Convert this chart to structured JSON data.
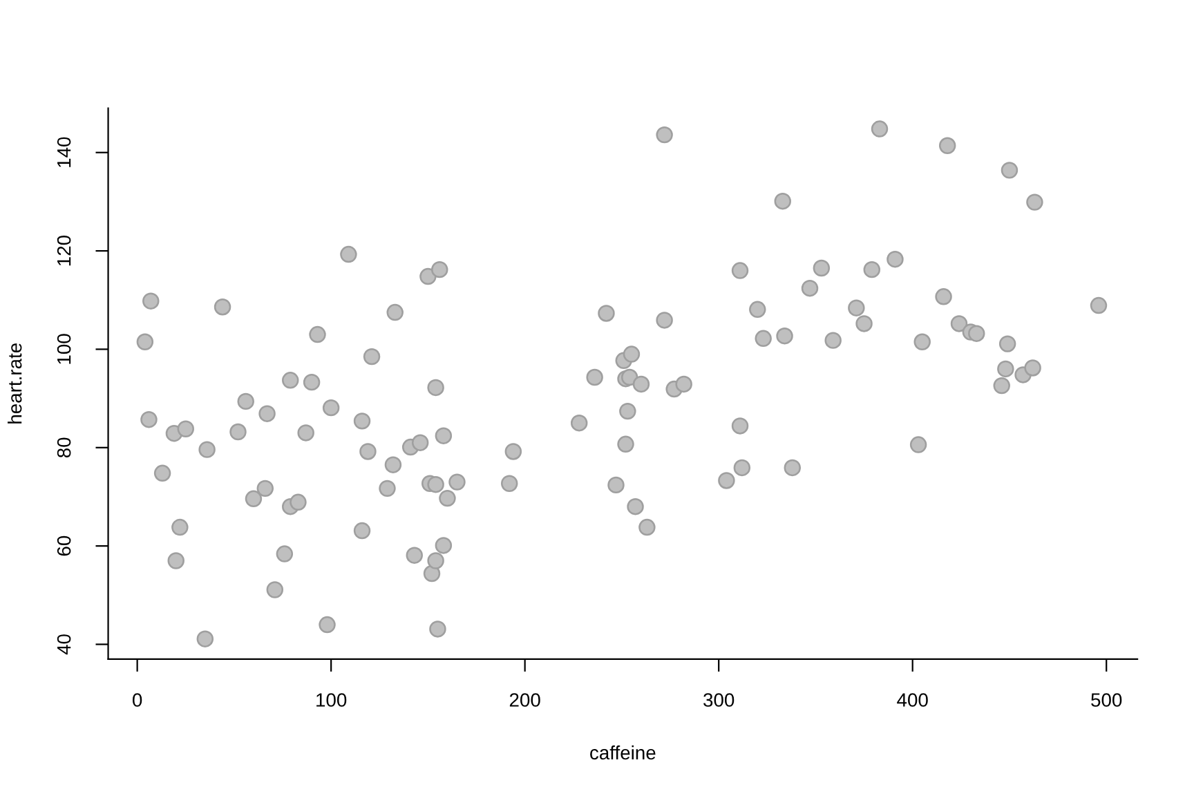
{
  "chart_data": {
    "type": "scatter",
    "xlabel": "caffeine",
    "ylabel": "heart.rate",
    "x": [
      4,
      7,
      6,
      13,
      19,
      20,
      22,
      25,
      35,
      36,
      44,
      52,
      56,
      60,
      66,
      67,
      71,
      76,
      79,
      79,
      83,
      87,
      90,
      93,
      98,
      100,
      109,
      116,
      116,
      119,
      121,
      129,
      132,
      133,
      141,
      143,
      146,
      150,
      151,
      152,
      154,
      154,
      154,
      155,
      156,
      158,
      158,
      160,
      165,
      192,
      194,
      228,
      236,
      242,
      247,
      251,
      252,
      252,
      253,
      254,
      255,
      257,
      260,
      263,
      272,
      272,
      277,
      282,
      304,
      311,
      311,
      312,
      320,
      323,
      333,
      334,
      338,
      347,
      353,
      359,
      371,
      375,
      379,
      383,
      391,
      403,
      405,
      416,
      418,
      424,
      430,
      433,
      446,
      448,
      449,
      450,
      457,
      462,
      463,
      496
    ],
    "series": [
      {
        "color": "#bfbfbf",
        "values": [
          101.5,
          109.8,
          85.7,
          74.8,
          82.9,
          57.0,
          63.8,
          83.8,
          41.1,
          79.6,
          108.6,
          83.2,
          89.4,
          69.6,
          71.7,
          86.9,
          51.1,
          58.4,
          68.0,
          93.7,
          68.9,
          83.0,
          93.3,
          103.0,
          44.0,
          88.1,
          119.3,
          85.4,
          63.1,
          79.2,
          98.5,
          71.7,
          76.5,
          107.5,
          80.1,
          58.1,
          81.0,
          114.8,
          72.7,
          54.4,
          57.0,
          92.2,
          72.5,
          43.1,
          116.2,
          82.4,
          60.1,
          69.7,
          73.0,
          72.7,
          79.2,
          85.0,
          94.3,
          107.3,
          72.4,
          97.7,
          94.0,
          80.7,
          87.4,
          94.3,
          99.0,
          68.0,
          92.9,
          63.8,
          143.6,
          105.9,
          91.9,
          92.9,
          73.3,
          116.0,
          84.4,
          75.9,
          108.1,
          102.2,
          130.1,
          102.7,
          75.9,
          112.4,
          116.5,
          101.8,
          108.4,
          105.2,
          116.2,
          144.8,
          118.3,
          80.6,
          101.5,
          110.7,
          141.4,
          105.2,
          103.5,
          103.2,
          92.6,
          96.0,
          101.1,
          136.4,
          94.8,
          96.2,
          129.9,
          108.9
        ]
      }
    ],
    "xlim": [
      -15,
      516
    ],
    "ylim": [
      37,
      149
    ],
    "xticks": [
      0,
      100,
      200,
      300,
      400,
      500
    ],
    "yticks": [
      40,
      60,
      80,
      100,
      120,
      140
    ],
    "grid": false,
    "marker": "circle"
  }
}
